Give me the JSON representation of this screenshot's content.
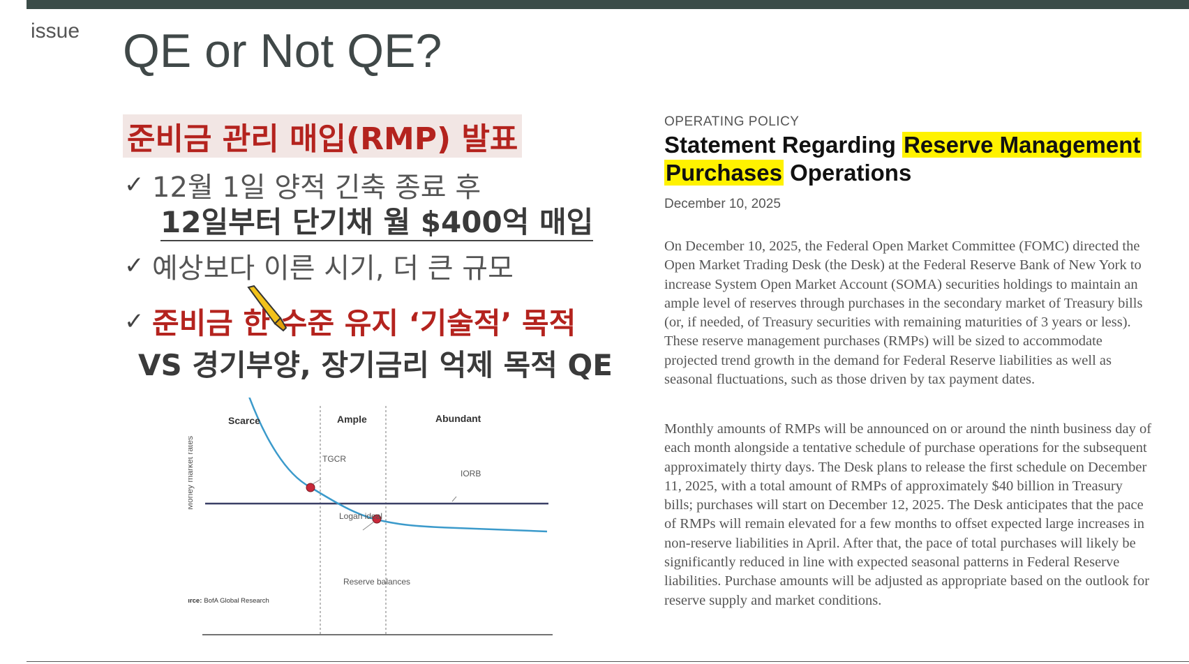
{
  "slide": {
    "section_label": "issue",
    "title": "QE or Not QE?"
  },
  "left": {
    "headline": "준비금 관리 매입(RMP) 발표",
    "check_glyph": "✓",
    "bullet1": "12월 1일 양적 긴축 종료 후",
    "bullet1_sub": "12일부터 단기채 월 $400억 매입",
    "bullet2": "예상보다 이른 시기, 더 큰 규모",
    "bullet3": "준비금 한 수준 유지 ‘기술적’ 목적",
    "bullet3_sub": "VS 경기부양, 장기금리 억제 목적 QE"
  },
  "chart_data": {
    "type": "line",
    "regions": [
      "Scarce",
      "Ample",
      "Abundant"
    ],
    "annotations": [
      "TGCR",
      "IORB",
      "Logan ideal"
    ],
    "xlabel": "Reserve balances",
    "ylabel": "Money market rates",
    "source_prefix": "Source:",
    "source_text": "BofA Global Research",
    "series": [
      {
        "name": "Money market rates curve",
        "values": "downward-sloping demand curve flattening at high reserves"
      },
      {
        "name": "IORB",
        "values": "horizontal line"
      }
    ],
    "colors": {
      "curve": "#3b9acb",
      "iorb": "#3a3f66",
      "points": "#c8283a"
    }
  },
  "right": {
    "kicker": "OPERATING POLICY",
    "title_pre": "Statement Regarding ",
    "title_hl1": "Reserve Management",
    "title_hl2": "Purchases",
    "title_post": " Operations",
    "date": "December 10, 2025",
    "paragraph1": "On December 10, 2025, the Federal Open Market Committee (FOMC) directed the Open Market Trading Desk (the Desk) at the Federal Reserve Bank of New York to increase System Open Market Account (SOMA) securities holdings to maintain an ample level of reserves through purchases in the secondary market of Treasury bills (or, if needed, of Treasury securities with remaining maturities of 3 years or less). These reserve management purchases (RMPs) will be sized to accommodate projected trend growth in the demand for Federal Reserve liabilities as well as seasonal fluctuations, such as those driven by tax payment dates.",
    "paragraph2": "Monthly amounts of RMPs will be announced on or around the ninth business day of each month alongside a tentative schedule of purchase operations for the subsequent approximately thirty days. The Desk plans to release the first schedule on December 11, 2025, with a total amount of RMPs of approximately $40 billion in Treasury bills; purchases will start on December 12, 2025. The Desk anticipates that the pace of RMPs will remain elevated for a few months to offset expected large increases in non-reserve liabilities in April. After that, the pace of total purchases will likely be significantly reduced in line with expected seasonal patterns in Federal Reserve liabilities. Purchase amounts will be adjusted as appropriate based on the outlook for reserve supply and market conditions."
  }
}
